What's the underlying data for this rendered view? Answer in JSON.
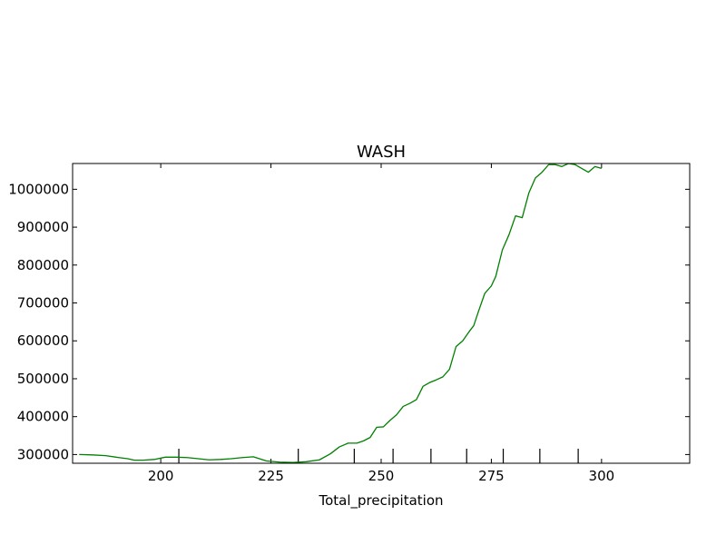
{
  "chart_data": {
    "type": "line",
    "title": "WASH",
    "xlabel": "Total_precipitation",
    "ylabel": "",
    "xlim": [
      180,
      320
    ],
    "ylim": [
      277000,
      1068000
    ],
    "x_ticks": [
      200,
      225,
      250,
      275,
      300
    ],
    "x_tick_labels": [
      "200",
      "225",
      "250",
      "275",
      "300"
    ],
    "y_ticks": [
      300000,
      400000,
      500000,
      600000,
      700000,
      800000,
      900000,
      1000000
    ],
    "y_tick_labels": [
      "300000",
      "400000",
      "500000",
      "600000",
      "700000",
      "800000",
      "900000",
      "1000000"
    ],
    "rug_x": [
      204.1,
      231.2,
      243.9,
      252.7,
      261.3,
      269.4,
      277.7,
      286.0,
      294.7
    ],
    "grid": false,
    "series": [
      {
        "color": "#008000",
        "x": [
          181.5,
          184.5,
          187.5,
          190.5,
          192.5,
          194.0,
          196.0,
          198.5,
          201.0,
          203.5,
          206.0,
          208.5,
          211.0,
          213.5,
          216.0,
          218.5,
          221.0,
          224.0,
          227.0,
          230.0,
          233.0,
          236.0,
          238.5,
          240.5,
          242.5,
          244.5,
          246.0,
          247.5,
          249.0,
          250.5,
          252.0,
          253.5,
          255.0,
          256.5,
          258.0,
          259.5,
          261.0,
          262.5,
          264.0,
          265.5,
          267.0,
          268.5,
          270.0,
          271.0,
          272.0,
          273.5,
          275.0,
          276.0,
          277.5,
          279.0,
          280.5,
          282.0,
          283.5,
          285.0,
          286.5,
          288.0,
          289.5,
          291.0,
          292.5,
          294.0,
          295.5,
          297.0,
          298.5,
          300.0
        ],
        "y": [
          300000,
          299000,
          297000,
          292000,
          289000,
          285000,
          285000,
          287000,
          293000,
          293000,
          292000,
          289000,
          286000,
          287000,
          289000,
          292000,
          294000,
          283000,
          280000,
          279000,
          281000,
          286000,
          302000,
          320000,
          330000,
          330000,
          336000,
          345000,
          372000,
          373000,
          390000,
          405000,
          427000,
          435000,
          445000,
          480000,
          490000,
          497000,
          505000,
          525000,
          585000,
          600000,
          625000,
          640000,
          675000,
          725000,
          745000,
          770000,
          840000,
          880000,
          930000,
          925000,
          990000,
          1030000,
          1045000,
          1065000,
          1065000,
          1060000,
          1068000,
          1065000,
          1055000,
          1045000,
          1060000,
          1055000
        ]
      }
    ]
  }
}
